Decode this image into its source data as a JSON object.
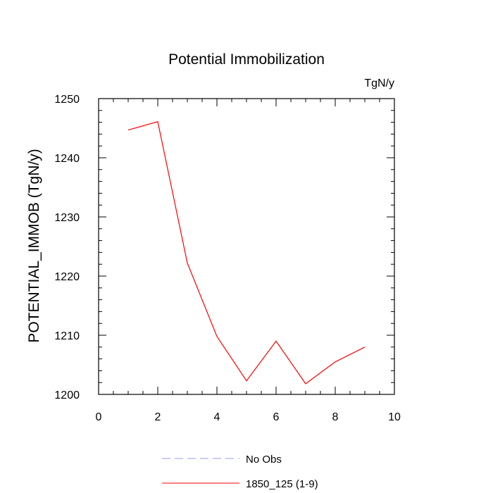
{
  "chart_data": {
    "type": "line",
    "title": "Potential Immobilization",
    "units_label": "TgN/y",
    "xlabel": "",
    "ylabel": "POTENTIAL_IMMOB  (TgN/y)",
    "xlim": [
      0,
      10
    ],
    "ylim": [
      1200,
      1250
    ],
    "x_ticks": [
      "0",
      "2",
      "4",
      "6",
      "8",
      "10"
    ],
    "y_ticks": [
      "1200",
      "1210",
      "1220",
      "1230",
      "1240",
      "1250"
    ],
    "grid": false,
    "legend_position": "bottom",
    "series": [
      {
        "name": "1850_125 (1-9)",
        "color": "#ff0000",
        "style": "solid",
        "x": [
          1,
          2,
          3,
          4,
          5,
          6,
          7,
          8,
          9
        ],
        "y": [
          1244.7,
          1246.1,
          1222.2,
          1209.8,
          1202.3,
          1209.0,
          1201.8,
          1205.5,
          1208.0
        ]
      }
    ],
    "legend": [
      {
        "label": "No Obs",
        "color": "#9999ff",
        "style": "dashed"
      },
      {
        "label": "1850_125 (1-9)",
        "color": "#ff0000",
        "style": "solid"
      }
    ]
  }
}
